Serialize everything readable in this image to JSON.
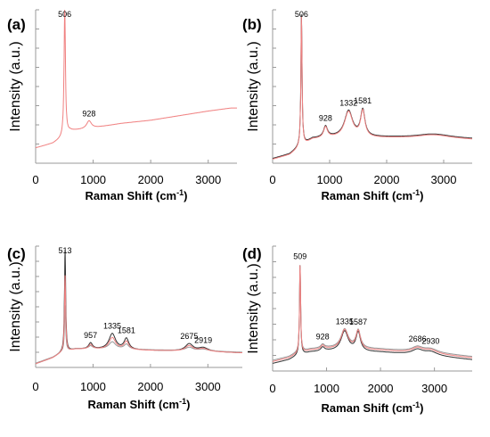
{
  "chart_data": [
    {
      "type": "line",
      "panel": "(a)",
      "ylabel": "Intensity (a.u.)",
      "xlabel_main": "Raman Shift (cm",
      "xlabel_sup": "-1",
      "xlabel_end": ")",
      "xlim": [
        0,
        3500
      ],
      "ylim": [
        0,
        100
      ],
      "xticks": [
        0,
        1000,
        2000,
        3000
      ],
      "baseline": [
        [
          0,
          10
        ],
        [
          300,
          13
        ],
        [
          440,
          16
        ],
        [
          600,
          21
        ],
        [
          1000,
          23
        ],
        [
          1500,
          26
        ],
        [
          2000,
          28
        ],
        [
          2500,
          31
        ],
        [
          3000,
          34
        ],
        [
          3400,
          36
        ]
      ],
      "peaks": [
        {
          "x": 506,
          "h": 84,
          "w": 14
        },
        {
          "x": 928,
          "h": 5,
          "w": 50
        }
      ],
      "annotations": [
        {
          "x": 506,
          "text": "506"
        },
        {
          "x": 928,
          "text": "928"
        }
      ],
      "series": [
        {
          "color": "#f08080",
          "offset": 0,
          "scale": 1
        }
      ]
    },
    {
      "type": "line",
      "panel": "(b)",
      "ylabel": "Intensity (a.u.)",
      "xlabel_main": "Raman Shift (cm",
      "xlabel_sup": "-1",
      "xlabel_end": ")",
      "xlim": [
        0,
        3500
      ],
      "ylim": [
        0,
        100
      ],
      "xticks": [
        0,
        1000,
        2000,
        3000
      ],
      "baseline": [
        [
          0,
          3
        ],
        [
          300,
          6
        ],
        [
          450,
          10
        ],
        [
          700,
          16
        ],
        [
          1000,
          17
        ],
        [
          2000,
          17
        ],
        [
          3000,
          17
        ],
        [
          3500,
          16
        ]
      ],
      "peaks": [
        {
          "x": 506,
          "h": 86,
          "w": 12
        },
        {
          "x": 928,
          "h": 7,
          "w": 40
        },
        {
          "x": 1332,
          "h": 17,
          "w": 85
        },
        {
          "x": 1581,
          "h": 17,
          "w": 45
        },
        {
          "x": 2800,
          "h": 2,
          "w": 300
        }
      ],
      "annotations": [
        {
          "x": 506,
          "text": "506"
        },
        {
          "x": 928,
          "text": "928"
        },
        {
          "x": 1332,
          "text": "1332"
        },
        {
          "x": 1581,
          "text": "1581"
        }
      ],
      "series": [
        {
          "color": "#333333",
          "offset": 0,
          "scale": 1
        },
        {
          "color": "#f08080",
          "offset": -0.5,
          "scale": 0.99
        }
      ]
    },
    {
      "type": "line",
      "panel": "(c)",
      "ylabel": "Intensity (a.u.)",
      "xlabel_main": "Raman Shift (cm",
      "xlabel_sup": "-1",
      "xlabel_end": ")",
      "xlim": [
        0,
        3600
      ],
      "ylim": [
        0,
        100
      ],
      "xticks": [
        0,
        1000,
        2000,
        3000
      ],
      "baseline": [
        [
          0,
          3
        ],
        [
          300,
          8
        ],
        [
          450,
          12
        ],
        [
          700,
          15
        ],
        [
          1000,
          15
        ],
        [
          2000,
          14
        ],
        [
          3000,
          13
        ],
        [
          3600,
          12
        ]
      ],
      "peaks": [
        {
          "x": 513,
          "h": 85,
          "w": 12
        },
        {
          "x": 957,
          "h": 5,
          "w": 40
        },
        {
          "x": 1335,
          "h": 13,
          "w": 70
        },
        {
          "x": 1581,
          "h": 9,
          "w": 50
        },
        {
          "x": 2675,
          "h": 6,
          "w": 80
        },
        {
          "x": 2919,
          "h": 3,
          "w": 100
        }
      ],
      "annotations": [
        {
          "x": 513,
          "text": "513"
        },
        {
          "x": 957,
          "text": "957"
        },
        {
          "x": 1335,
          "text": "1335"
        },
        {
          "x": 1581,
          "text": "1581"
        },
        {
          "x": 2675,
          "text": "2675"
        },
        {
          "x": 2919,
          "text": "2919"
        }
      ],
      "series": [
        {
          "color": "#333333",
          "offset": 0,
          "scale": 1
        },
        {
          "color": "#999999",
          "offset": 0.5,
          "scale": 0.45
        },
        {
          "color": "#f08080",
          "offset": 0,
          "scale": 0.75
        }
      ]
    },
    {
      "type": "line",
      "panel": "(d)",
      "ylabel": "Intensity (a.u.)",
      "xlabel_main": "Raman Shift (cm",
      "xlabel_sup": "-1",
      "xlabel_end": ")",
      "xlim": [
        0,
        3700
      ],
      "ylim": [
        0,
        100
      ],
      "xticks": [
        0,
        1000,
        2000,
        3000
      ],
      "baseline": [
        [
          0,
          7
        ],
        [
          300,
          10
        ],
        [
          450,
          13
        ],
        [
          700,
          16
        ],
        [
          1000,
          17
        ],
        [
          2000,
          16
        ],
        [
          3000,
          13
        ],
        [
          3700,
          10
        ]
      ],
      "peaks": [
        {
          "x": 509,
          "h": 73,
          "w": 12
        },
        {
          "x": 928,
          "h": 3,
          "w": 40
        },
        {
          "x": 1335,
          "h": 16,
          "w": 80
        },
        {
          "x": 1587,
          "h": 15,
          "w": 50
        },
        {
          "x": 2686,
          "h": 4,
          "w": 120
        },
        {
          "x": 2930,
          "h": 3,
          "w": 150
        }
      ],
      "annotations": [
        {
          "x": 509,
          "text": "509"
        },
        {
          "x": 928,
          "text": "928"
        },
        {
          "x": 1335,
          "text": "1335"
        },
        {
          "x": 1587,
          "text": "1587"
        },
        {
          "x": 2686,
          "text": "2686"
        },
        {
          "x": 2930,
          "text": "2930"
        }
      ],
      "series": [
        {
          "color": "#333333",
          "offset": -1,
          "scale": 1
        },
        {
          "color": "#999999",
          "offset": 1.5,
          "scale": 0.95
        },
        {
          "color": "#f08080",
          "offset": 0.5,
          "scale": 0.98
        }
      ]
    }
  ]
}
